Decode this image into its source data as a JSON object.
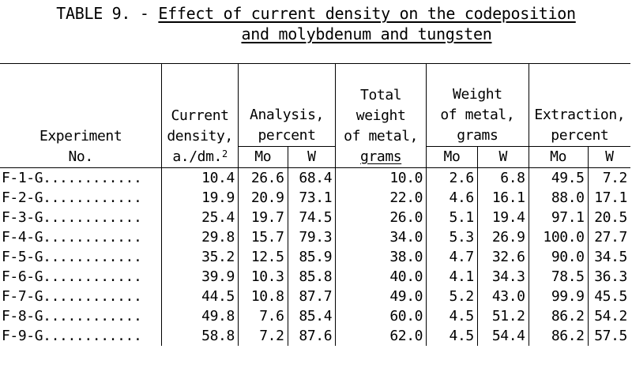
{
  "title": {
    "prefix": "TABLE 9. - ",
    "line1": "Effect of current density on the codeposition",
    "line2": "and molybdenum and tungsten"
  },
  "headers": {
    "experiment": "Experiment",
    "experiment_no": "No.",
    "current_density_1": "Current",
    "current_density_2": "density,",
    "current_density_unit": "a./dm.",
    "current_density_sup": "2",
    "analysis_1": "Analysis,",
    "analysis_2": "percent",
    "total_weight_1": "Total",
    "total_weight_2": "weight",
    "total_weight_3": "of metal,",
    "total_weight_4": "grams",
    "weight_metal_1": "Weight",
    "weight_metal_2": "of metal,",
    "weight_metal_3": "grams",
    "extraction_1": "Extraction,",
    "extraction_2": "percent",
    "mo": "Mo",
    "w": "W"
  },
  "rows": [
    {
      "exp": "F-1-G............",
      "cd": "10.4",
      "an_mo": "26.6",
      "an_w": "68.4",
      "tw": "10.0",
      "wm_mo": "2.6",
      "wm_w": "6.8",
      "ex_mo": "49.5",
      "ex_w": "7.2"
    },
    {
      "exp": "F-2-G............",
      "cd": "19.9",
      "an_mo": "20.9",
      "an_w": "73.1",
      "tw": "22.0",
      "wm_mo": "4.6",
      "wm_w": "16.1",
      "ex_mo": "88.0",
      "ex_w": "17.1"
    },
    {
      "exp": "F-3-G............",
      "cd": "25.4",
      "an_mo": "19.7",
      "an_w": "74.5",
      "tw": "26.0",
      "wm_mo": "5.1",
      "wm_w": "19.4",
      "ex_mo": "97.1",
      "ex_w": "20.5"
    },
    {
      "exp": "F-4-G............",
      "cd": "29.8",
      "an_mo": "15.7",
      "an_w": "79.3",
      "tw": "34.0",
      "wm_mo": "5.3",
      "wm_w": "26.9",
      "ex_mo": "100.0",
      "ex_w": "27.7"
    },
    {
      "exp": "F-5-G............",
      "cd": "35.2",
      "an_mo": "12.5",
      "an_w": "85.9",
      "tw": "38.0",
      "wm_mo": "4.7",
      "wm_w": "32.6",
      "ex_mo": "90.0",
      "ex_w": "34.5"
    },
    {
      "exp": "F-6-G............",
      "cd": "39.9",
      "an_mo": "10.3",
      "an_w": "85.8",
      "tw": "40.0",
      "wm_mo": "4.1",
      "wm_w": "34.3",
      "ex_mo": "78.5",
      "ex_w": "36.3"
    },
    {
      "exp": "F-7-G............",
      "cd": "44.5",
      "an_mo": "10.8",
      "an_w": "87.7",
      "tw": "49.0",
      "wm_mo": "5.2",
      "wm_w": "43.0",
      "ex_mo": "99.9",
      "ex_w": "45.5"
    },
    {
      "exp": "F-8-G............",
      "cd": "49.8",
      "an_mo": "7.6",
      "an_w": "85.4",
      "tw": "60.0",
      "wm_mo": "4.5",
      "wm_w": "51.2",
      "ex_mo": "86.2",
      "ex_w": "54.2"
    },
    {
      "exp": "F-9-G............",
      "cd": "58.8",
      "an_mo": "7.2",
      "an_w": "87.6",
      "tw": "62.0",
      "wm_mo": "4.5",
      "wm_w": "54.4",
      "ex_mo": "86.2",
      "ex_w": "57.5"
    }
  ]
}
